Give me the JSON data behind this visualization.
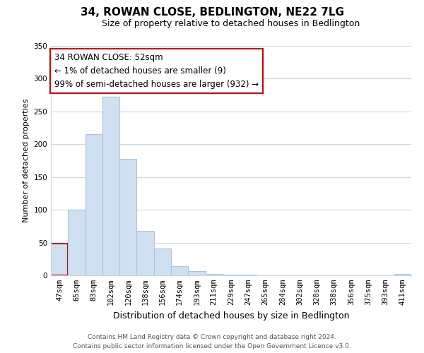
{
  "title": "34, ROWAN CLOSE, BEDLINGTON, NE22 7LG",
  "subtitle": "Size of property relative to detached houses in Bedlington",
  "xlabel": "Distribution of detached houses by size in Bedlington",
  "ylabel": "Number of detached properties",
  "categories": [
    "47sqm",
    "65sqm",
    "83sqm",
    "102sqm",
    "120sqm",
    "138sqm",
    "156sqm",
    "174sqm",
    "193sqm",
    "211sqm",
    "229sqm",
    "247sqm",
    "265sqm",
    "284sqm",
    "302sqm",
    "320sqm",
    "338sqm",
    "356sqm",
    "375sqm",
    "393sqm",
    "411sqm"
  ],
  "values": [
    49,
    100,
    215,
    273,
    178,
    68,
    41,
    14,
    6,
    2,
    1,
    1,
    0,
    0,
    0,
    0,
    0,
    0,
    0,
    0,
    2
  ],
  "bar_color": "#cfe0f0",
  "bar_edge_color": "#a8c4de",
  "highlight_bar_index": 0,
  "highlight_edge_color": "#cc0000",
  "ylim": [
    0,
    350
  ],
  "yticks": [
    0,
    50,
    100,
    150,
    200,
    250,
    300,
    350
  ],
  "annotation_box_text": "34 ROWAN CLOSE: 52sqm\n← 1% of detached houses are smaller (9)\n99% of semi-detached houses are larger (932) →",
  "annotation_box_color": "white",
  "annotation_box_edge_color": "#cc0000",
  "footer_line1": "Contains HM Land Registry data © Crown copyright and database right 2024.",
  "footer_line2": "Contains public sector information licensed under the Open Government Licence v3.0.",
  "background_color": "white",
  "grid_color": "#c8d8e8",
  "title_fontsize": 11,
  "subtitle_fontsize": 9,
  "ylabel_fontsize": 8,
  "xlabel_fontsize": 9,
  "tick_fontsize": 7.5,
  "annotation_fontsize": 8.5,
  "footer_fontsize": 6.5
}
